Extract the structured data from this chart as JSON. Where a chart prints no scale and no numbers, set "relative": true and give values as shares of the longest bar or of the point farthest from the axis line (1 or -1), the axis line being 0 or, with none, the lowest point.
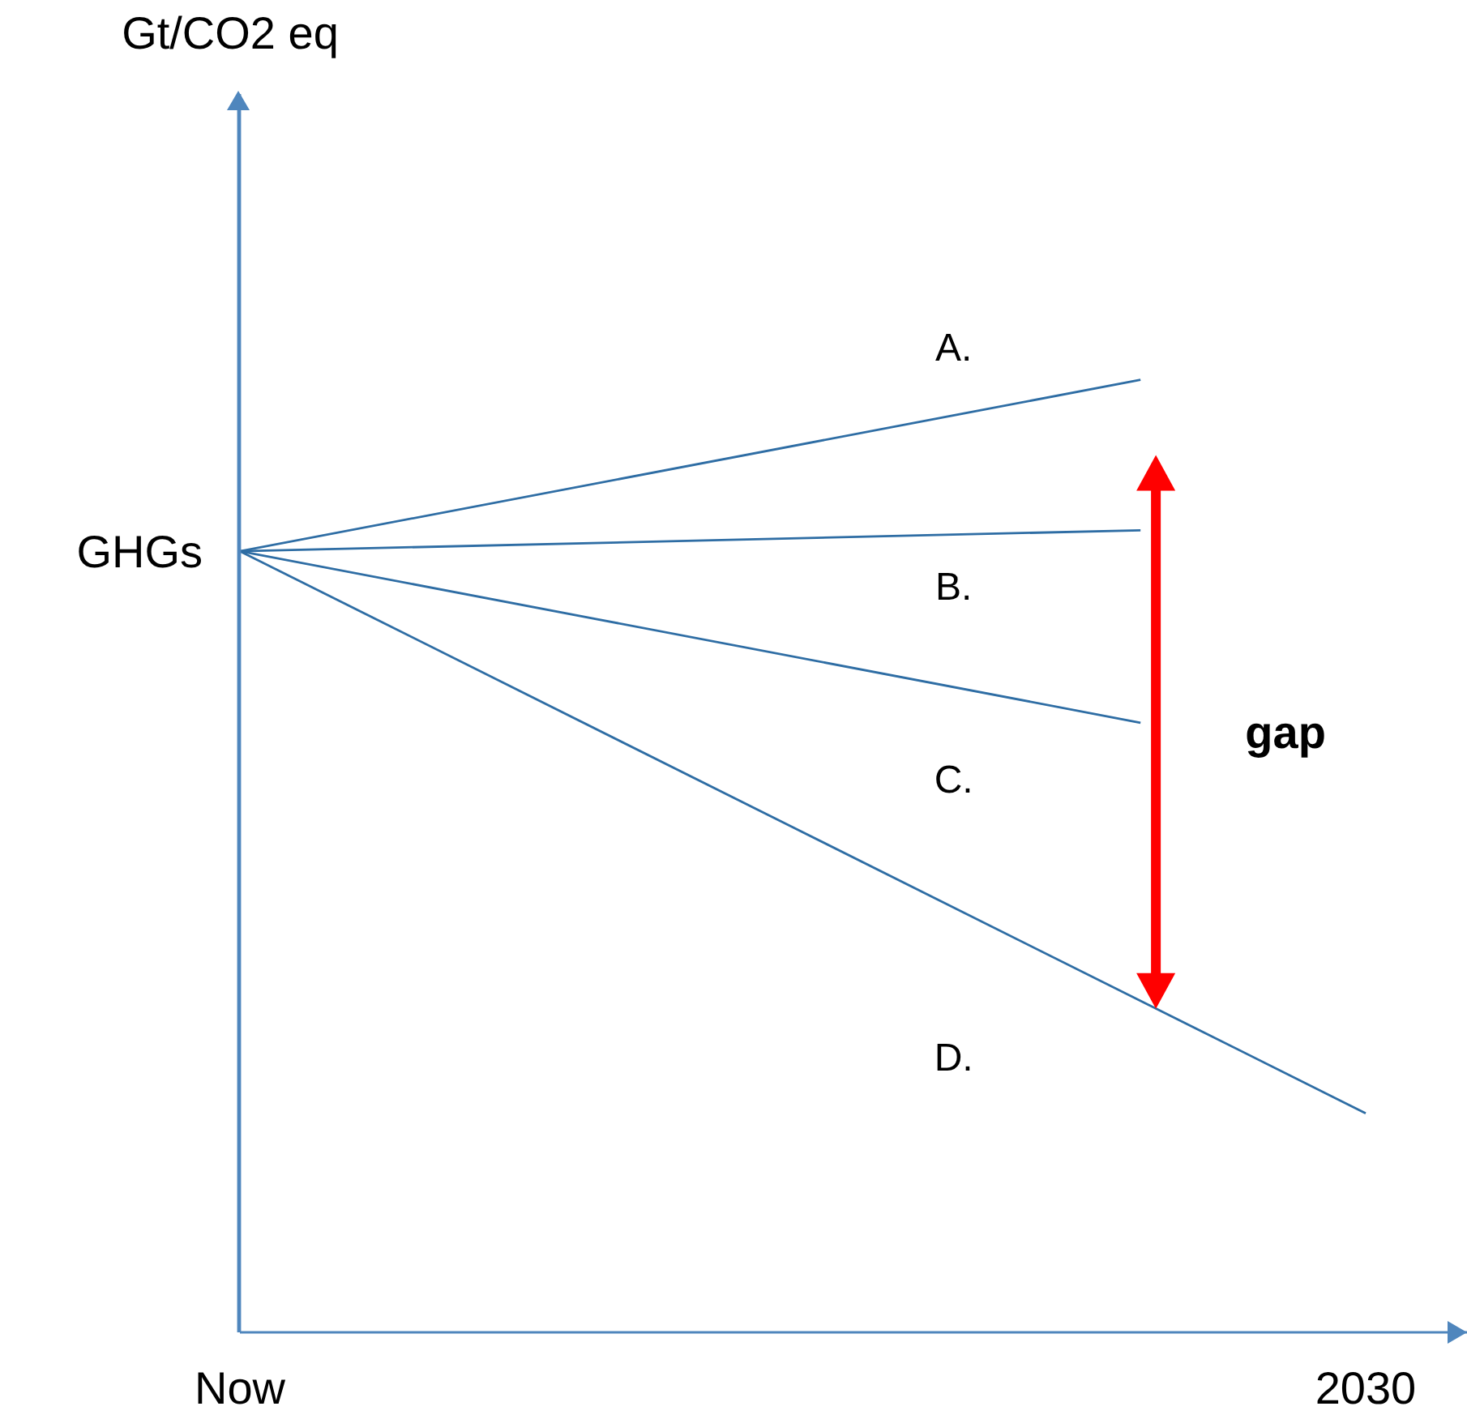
{
  "chart_data": {
    "type": "line",
    "relative": true,
    "categories": [
      "Now",
      null,
      null,
      null,
      null,
      "2030"
    ],
    "marker": "none",
    "line_style": "solid",
    "annotations": [
      {
        "text": "GHGs",
        "x": "Now",
        "y": 0.82
      },
      "Gt/CO2 eq",
      "gap"
    ],
    "series": [
      {
        "name": "A.",
        "color": "#2e6da4",
        "values": [
          0.82,
          null,
          null,
          null,
          1.0,
          null
        ]
      },
      {
        "name": "B.",
        "color": "#2e6da4",
        "values": [
          0.82,
          null,
          null,
          null,
          0.842,
          null
        ]
      },
      {
        "name": "C.",
        "color": "#2e6da4",
        "values": [
          0.82,
          null,
          null,
          null,
          0.64,
          null
        ]
      },
      {
        "name": "D.",
        "color": "#2e6da4",
        "values": [
          0.82,
          null,
          null,
          null,
          null,
          0.23
        ]
      }
    ]
  }
}
